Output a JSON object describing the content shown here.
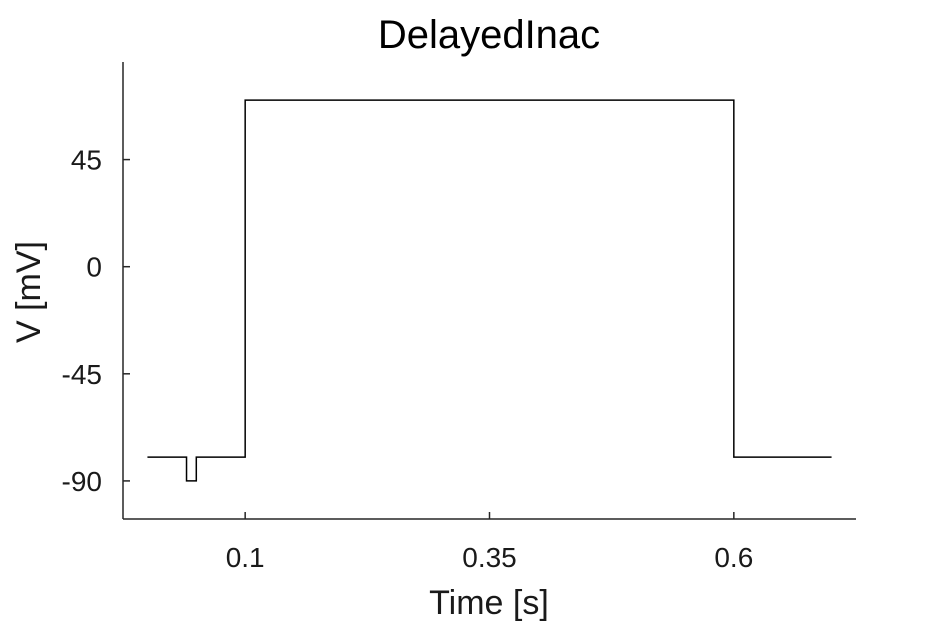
{
  "chart_data": {
    "type": "line",
    "title": "DelayedInac",
    "xlabel": "Time [s]",
    "ylabel": "V [mV]",
    "xlim": [
      -0.025,
      0.725
    ],
    "ylim": [
      -106,
      86
    ],
    "xticks": [
      0.1,
      0.35,
      0.6
    ],
    "xtick_labels": [
      "0.1",
      "0.35",
      "0.6"
    ],
    "yticks": [
      -90,
      -45,
      0,
      45
    ],
    "ytick_labels": [
      "-90",
      "-45",
      "0",
      "45"
    ],
    "grid": false,
    "legend": "none",
    "series": [
      {
        "color": "#000000",
        "x": [
          0.0,
          0.04,
          0.04,
          0.05,
          0.05,
          0.1,
          0.1,
          0.6,
          0.6,
          0.7
        ],
        "y": [
          -80,
          -80,
          -90,
          -90,
          -80,
          -80,
          70,
          70,
          -80,
          -80
        ]
      }
    ]
  }
}
